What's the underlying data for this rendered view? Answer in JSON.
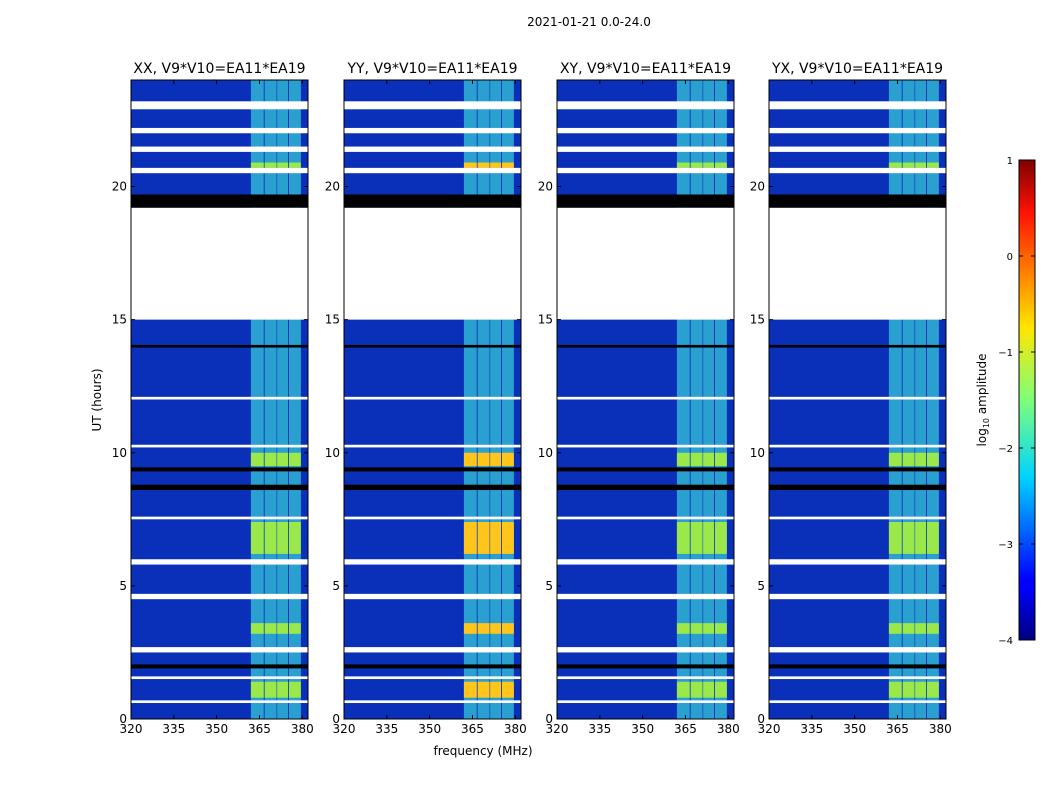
{
  "figure": {
    "suptitle": "2021-01-21 0.0-24.0",
    "xlabel": "frequency (MHz)",
    "ylabel": "UT (hours)",
    "colorbar_label_prefix": "log",
    "colorbar_label_sub": "10",
    "colorbar_label_suffix": " amplitude"
  },
  "colors": {
    "bg": "#0a2fb8",
    "masked": "#ffffff",
    "flag": "#000000"
  },
  "chart_data": {
    "type": "heatmap",
    "panels": [
      {
        "title": "XX, V9*V10=EA11*EA19",
        "pol": "XX"
      },
      {
        "title": "YY, V9*V10=EA11*EA19",
        "pol": "YY"
      },
      {
        "title": "XY, V9*V10=EA11*EA19",
        "pol": "XY"
      },
      {
        "title": "YX, V9*V10=EA11*EA19",
        "pol": "YX"
      }
    ],
    "xlim": [
      320,
      382
    ],
    "ylim": [
      0,
      24
    ],
    "xticks": [
      320,
      335,
      350,
      365,
      380
    ],
    "xtick_labels": [
      "320",
      "335",
      "350",
      "365",
      "380"
    ],
    "yticks": [
      0,
      5,
      10,
      15,
      20
    ],
    "ytick_labels": [
      "0",
      "5",
      "10",
      "15",
      "20"
    ],
    "rfi_channels_mhz": [
      [
        362.0,
        366.5
      ],
      [
        366.8,
        371.0
      ],
      [
        371.2,
        375.0
      ],
      [
        375.3,
        379.5
      ]
    ],
    "masked_ut_ranges": [
      [
        15.0,
        19.2
      ],
      [
        0.6,
        0.7
      ],
      [
        1.5,
        1.6
      ],
      [
        2.5,
        2.7
      ],
      [
        4.5,
        4.7
      ],
      [
        5.8,
        6.0
      ],
      [
        7.5,
        7.6
      ],
      [
        10.2,
        10.3
      ],
      [
        12.0,
        12.1
      ],
      [
        20.5,
        20.7
      ],
      [
        21.3,
        21.5
      ],
      [
        22.0,
        22.2
      ],
      [
        22.9,
        23.2
      ]
    ],
    "flagged_ut_ranges": [
      [
        19.2,
        19.7
      ],
      [
        8.6,
        8.8
      ],
      [
        9.3,
        9.45
      ],
      [
        1.9,
        2.05
      ],
      [
        13.95,
        14.05
      ]
    ],
    "bright_ut_ranges": [
      [
        0.8,
        1.4
      ],
      [
        3.2,
        3.6
      ],
      [
        6.2,
        7.4
      ],
      [
        9.5,
        10.0
      ],
      [
        20.7,
        20.9
      ]
    ],
    "colorbar": {
      "vmin": -4,
      "vmax": 1,
      "ticks": [
        1,
        0,
        -1,
        -2,
        -3,
        -4
      ],
      "tick_labels": [
        "1",
        "0",
        "−1",
        "−2",
        "−3",
        "−4"
      ],
      "colormap": "jet"
    }
  }
}
